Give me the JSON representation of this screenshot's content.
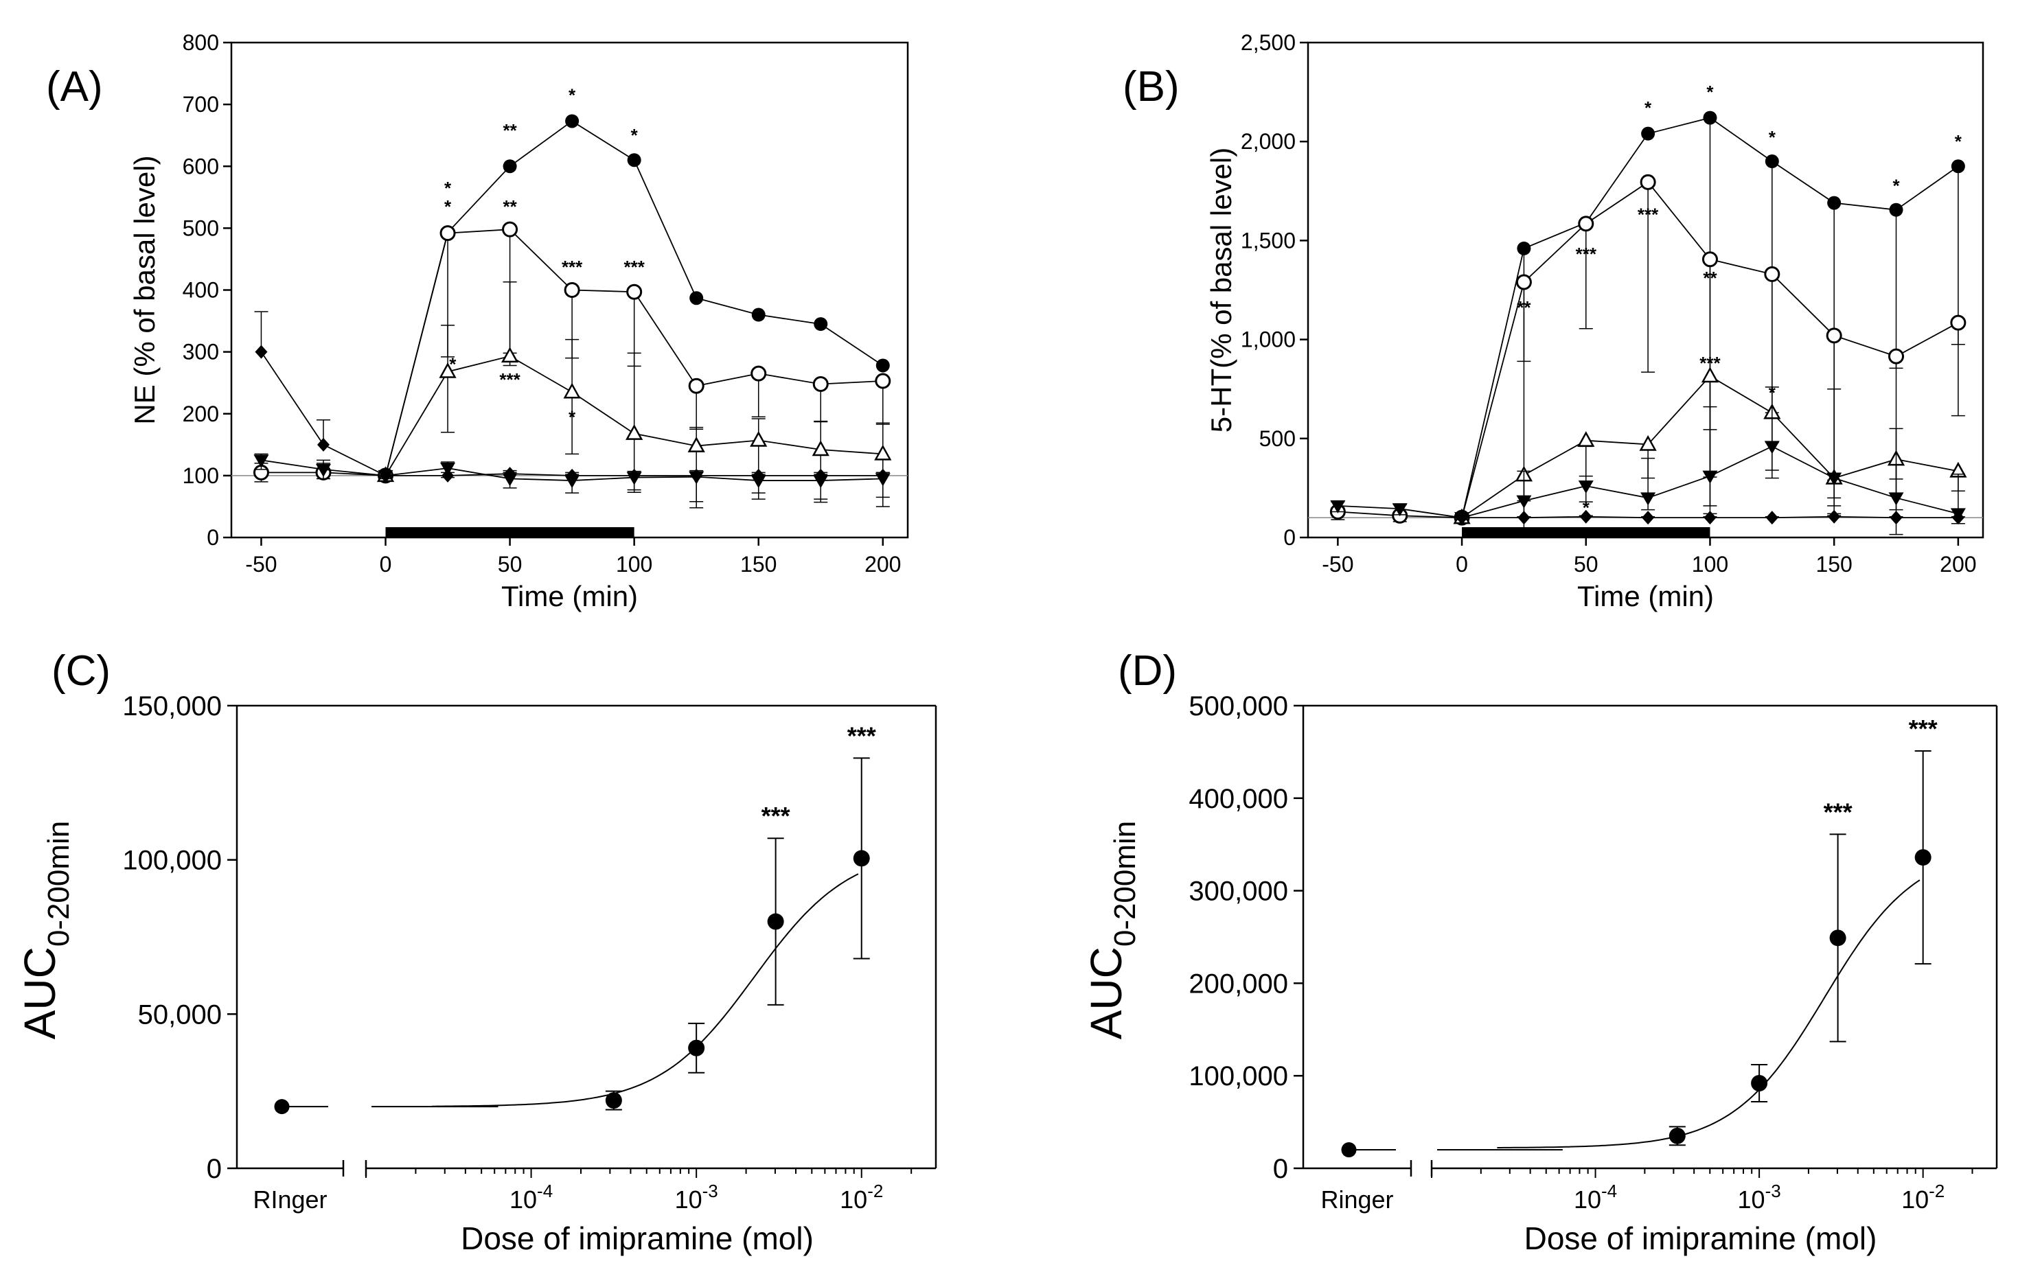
{
  "chart_data": [
    {
      "id": "A",
      "panel_label": "(A)",
      "type": "line",
      "ylabel": "NE (% of basal level)",
      "xlabel": "Time (min)",
      "xlim": [
        -62,
        210
      ],
      "ylim": [
        0,
        800
      ],
      "xticks": [
        -50,
        0,
        50,
        100,
        150,
        200
      ],
      "xtick_labels": [
        "-50",
        "0",
        "50",
        "100",
        "150",
        "200"
      ],
      "yticks": [
        0,
        100,
        200,
        300,
        400,
        500,
        600,
        700,
        800
      ],
      "ytick_labels": [
        "0",
        "100",
        "200",
        "300",
        "400",
        "500",
        "600",
        "700",
        "800"
      ],
      "baseline": 100,
      "bar_range": [
        0,
        100
      ],
      "x": [
        -50,
        -25,
        0,
        25,
        50,
        75,
        100,
        125,
        150,
        175,
        200
      ],
      "series": [
        {
          "name": "filled circle",
          "marker": "circle-filled",
          "values": [
            null,
            null,
            100,
            493,
            600,
            673,
            610,
            387,
            360,
            345,
            278
          ],
          "err_down": [
            null,
            null,
            0,
            0,
            0,
            0,
            0,
            0,
            0,
            0,
            0
          ],
          "err_up": [
            null,
            null,
            0,
            0,
            0,
            0,
            0,
            0,
            0,
            0,
            0
          ]
        },
        {
          "name": "open circle",
          "marker": "circle-open",
          "values": [
            105,
            105,
            100,
            492,
            498,
            400,
            397,
            245,
            265,
            248,
            253
          ],
          "err_down": [
            15,
            10,
            5,
            200,
            200,
            110,
            120,
            70,
            70,
            60,
            70
          ],
          "err_up": [
            15,
            20,
            5,
            0,
            0,
            0,
            0,
            0,
            0,
            0,
            0
          ]
        },
        {
          "name": "open triangle",
          "marker": "triangle-open",
          "values": [
            null,
            null,
            100,
            268,
            293,
            235,
            168,
            148,
            157,
            142,
            135
          ],
          "err_down": [
            null,
            null,
            5,
            98,
            15,
            100,
            95,
            100,
            85,
            80,
            85
          ],
          "err_up": [
            null,
            null,
            5,
            75,
            120,
            85,
            130,
            30,
            35,
            45,
            50
          ]
        },
        {
          "name": "filled triangle down",
          "marker": "triangle-down-filled",
          "values": [
            125,
            110,
            100,
            112,
            95,
            92,
            97,
            98,
            92,
            92,
            95
          ],
          "err_down": [
            15,
            15,
            5,
            15,
            15,
            20,
            20,
            40,
            30,
            35,
            30
          ],
          "err_up": [
            10,
            10,
            5,
            10,
            10,
            10,
            10,
            10,
            10,
            10,
            10
          ]
        },
        {
          "name": "filled diamond",
          "marker": "diamond-filled",
          "values": [
            300,
            150,
            100,
            100,
            103,
            100,
            100,
            100,
            100,
            100,
            100
          ],
          "err_down": [
            0,
            0,
            0,
            0,
            0,
            0,
            0,
            0,
            0,
            0,
            0
          ],
          "err_up": [
            65,
            40,
            5,
            5,
            5,
            5,
            5,
            5,
            5,
            5,
            5
          ]
        }
      ],
      "annotations": [
        {
          "text": "*",
          "x": 25,
          "y": 555
        },
        {
          "text": "*",
          "x": 25,
          "y": 525
        },
        {
          "text": "**",
          "x": 50,
          "y": 648
        },
        {
          "text": "*",
          "x": 75,
          "y": 705
        },
        {
          "text": "*",
          "x": 100,
          "y": 640
        },
        {
          "text": "**",
          "x": 50,
          "y": 525
        },
        {
          "text": "***",
          "x": 75,
          "y": 427
        },
        {
          "text": "***",
          "x": 100,
          "y": 427
        },
        {
          "text": "*",
          "x": 27,
          "y": 270
        },
        {
          "text": "***",
          "x": 50,
          "y": 245
        },
        {
          "text": "*",
          "x": 75,
          "y": 185
        }
      ]
    },
    {
      "id": "B",
      "panel_label": "(B)",
      "type": "line",
      "ylabel": "5-HT(% of basal level)",
      "xlabel": "Time (min)",
      "xlim": [
        -62,
        210
      ],
      "ylim": [
        0,
        2500
      ],
      "xticks": [
        -50,
        0,
        50,
        100,
        150,
        200
      ],
      "xtick_labels": [
        "-50",
        "0",
        "50",
        "100",
        "150",
        "200"
      ],
      "yticks": [
        0,
        500,
        1000,
        1500,
        2000,
        2500
      ],
      "ytick_labels": [
        "0",
        "500",
        "1,000",
        "1,500",
        "2,000",
        "2,500"
      ],
      "baseline": 100,
      "bar_range": [
        0,
        100
      ],
      "x": [
        -50,
        -25,
        0,
        25,
        50,
        75,
        100,
        125,
        150,
        175,
        200
      ],
      "series": [
        {
          "name": "filled circle",
          "marker": "circle-filled",
          "values": [
            null,
            null,
            100,
            1460,
            1590,
            2040,
            2120,
            1900,
            1690,
            1655,
            1875
          ],
          "err_down": [
            null,
            null,
            0,
            1460,
            0,
            0,
            2000,
            1600,
            1400,
            800,
            900
          ],
          "err_up": [
            null,
            null,
            0,
            0,
            0,
            0,
            0,
            0,
            0,
            0,
            0
          ]
        },
        {
          "name": "open circle",
          "marker": "circle-open",
          "values": [
            130,
            110,
            100,
            1290,
            1585,
            1795,
            1405,
            1330,
            1020,
            915,
            1085
          ],
          "err_down": [
            40,
            30,
            10,
            400,
            530,
            960,
            1100,
            700,
            900,
            900,
            470
          ],
          "err_up": [
            20,
            10,
            10,
            0,
            0,
            0,
            0,
            0,
            0,
            0,
            0
          ]
        },
        {
          "name": "open triangle",
          "marker": "triangle-open",
          "values": [
            null,
            null,
            100,
            315,
            490,
            470,
            815,
            630,
            300,
            395,
            335
          ],
          "err_down": [
            null,
            null,
            10,
            130,
            180,
            170,
            270,
            150,
            100,
            100,
            100
          ],
          "err_up": [
            null,
            null,
            10,
            0,
            0,
            0,
            0,
            0,
            0,
            0,
            0
          ]
        },
        {
          "name": "filled triangle down",
          "marker": "triangle-down-filled",
          "values": [
            160,
            145,
            100,
            185,
            260,
            200,
            310,
            460,
            300,
            200,
            120
          ],
          "err_down": [
            30,
            30,
            10,
            80,
            80,
            60,
            150,
            120,
            140,
            60,
            50
          ],
          "err_up": [
            20,
            20,
            10,
            150,
            200,
            200,
            350,
            300,
            450,
            350,
            200
          ]
        },
        {
          "name": "filled diamond",
          "marker": "diamond-filled",
          "values": [
            null,
            null,
            100,
            100,
            105,
            100,
            100,
            100,
            105,
            100,
            100
          ],
          "err_down": [
            null,
            null,
            0,
            0,
            0,
            0,
            0,
            0,
            0,
            0,
            0
          ],
          "err_up": [
            null,
            null,
            5,
            5,
            5,
            5,
            5,
            5,
            5,
            5,
            5
          ]
        }
      ],
      "annotations": [
        {
          "text": "*",
          "x": 75,
          "y": 2140
        },
        {
          "text": "*",
          "x": 100,
          "y": 2220
        },
        {
          "text": "*",
          "x": 125,
          "y": 1990
        },
        {
          "text": "*",
          "x": 175,
          "y": 1745
        },
        {
          "text": "*",
          "x": 200,
          "y": 1970
        },
        {
          "text": "**",
          "x": 25,
          "y": 1130
        },
        {
          "text": "***",
          "x": 50,
          "y": 1400
        },
        {
          "text": "***",
          "x": 75,
          "y": 1600
        },
        {
          "text": "**",
          "x": 100,
          "y": 1280
        },
        {
          "text": "***",
          "x": 100,
          "y": 850
        },
        {
          "text": "*",
          "x": 125,
          "y": 700
        },
        {
          "text": "*",
          "x": 50,
          "y": 120
        }
      ]
    },
    {
      "id": "C",
      "panel_label": "(C)",
      "type": "scatter",
      "ylabel_main": "AUC",
      "ylabel_sub": "0-200min",
      "xlabel": "Dose of imipramine (mol)",
      "ylim": [
        0,
        150000
      ],
      "yticks": [
        0,
        50000,
        100000,
        150000
      ],
      "ytick_labels": [
        "0",
        "50,000",
        "100,000",
        "150,000"
      ],
      "xlim_log": [
        -5.0,
        -1.55
      ],
      "xticks_log": [
        -4,
        -3,
        -2
      ],
      "xtick_labels": [
        {
          "base": "10",
          "exp": "-4"
        },
        {
          "base": "10",
          "exp": "-3"
        },
        {
          "base": "10",
          "exp": "-2"
        }
      ],
      "control": {
        "label": "RInger",
        "value": 20000,
        "err": 0
      },
      "points": [
        {
          "log_dose": -3.5,
          "value": 22000,
          "err_down": 3000,
          "err_up": 3000,
          "sig": ""
        },
        {
          "log_dose": -3.0,
          "value": 39000,
          "err_down": 8000,
          "err_up": 8000,
          "sig": ""
        },
        {
          "log_dose": -2.52,
          "value": 80000,
          "err_down": 27000,
          "err_up": 27000,
          "sig": "***"
        },
        {
          "log_dose": -2.0,
          "value": 100500,
          "err_down": 32500,
          "err_up": 32500,
          "sig": "***"
        }
      ],
      "fit": {
        "bottom": 20000,
        "top": 104000,
        "log_ec50": -2.65,
        "hill": 1.5
      }
    },
    {
      "id": "D",
      "panel_label": "(D)",
      "type": "scatter",
      "ylabel_main": "AUC",
      "ylabel_sub": "0-200min",
      "xlabel": "Dose of imipramine (mol)",
      "ylim": [
        0,
        500000
      ],
      "yticks": [
        0,
        100000,
        200000,
        300000,
        400000,
        500000
      ],
      "ytick_labels": [
        "0",
        "100,000",
        "200,000",
        "300,000",
        "400,000",
        "500,000"
      ],
      "xlim_log": [
        -5.0,
        -1.55
      ],
      "xticks_log": [
        -4,
        -3,
        -2
      ],
      "xtick_labels": [
        {
          "base": "10",
          "exp": "-4"
        },
        {
          "base": "10",
          "exp": "-3"
        },
        {
          "base": "10",
          "exp": "-2"
        }
      ],
      "control": {
        "label": "Ringer",
        "value": 20000,
        "err": 0
      },
      "points": [
        {
          "log_dose": -3.5,
          "value": 35000,
          "err_down": 10000,
          "err_up": 10000,
          "sig": ""
        },
        {
          "log_dose": -3.0,
          "value": 92000,
          "err_down": 20000,
          "err_up": 20000,
          "sig": ""
        },
        {
          "log_dose": -2.52,
          "value": 249000,
          "err_down": 112000,
          "err_up": 112000,
          "sig": "***"
        },
        {
          "log_dose": -2.0,
          "value": 336000,
          "err_down": 115000,
          "err_up": 115000,
          "sig": "***"
        }
      ],
      "fit": {
        "bottom": 22000,
        "top": 348000,
        "log_ec50": -2.6,
        "hill": 1.55
      }
    }
  ]
}
